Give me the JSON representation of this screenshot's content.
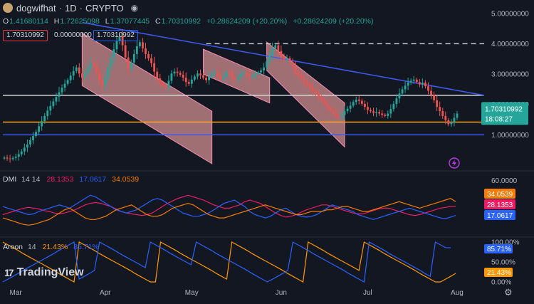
{
  "header": {
    "symbol": "dogwifhat",
    "interval": "1D",
    "exchange": "CRYPTO",
    "ohlc": {
      "o_label": "O",
      "o": "1.41680114",
      "h_label": "H",
      "h": "1.72625098",
      "l_label": "L",
      "l": "1.37077445",
      "c_label": "C",
      "c": "1.70310992",
      "change": "+0.28624209 (+20.20%)",
      "change2": "+0.28624209 (+20.20%)"
    },
    "tag_red": "1.70310992",
    "tag_zero": "0.00000000",
    "tag_blue": "1.70310992"
  },
  "indicators": {
    "dmi": {
      "name": "DMI",
      "params": "14 14",
      "adx": "28.1353",
      "minus_di": "17.0617",
      "plus_di": "34.0539"
    },
    "aroon": {
      "name": "Aroon",
      "params": "14",
      "down": "21.43%",
      "up": "85.71%"
    }
  },
  "price_badge": {
    "price": "1.70310992",
    "countdown": "18:08:27"
  },
  "branding": {
    "logo_text": "TradingView",
    "logo_mark": "17"
  },
  "colors": {
    "background": "#131722",
    "up": "#26a69a",
    "down": "#ef5350",
    "channel_fill": "#f7a7a7",
    "blue_line": "#3d5af1",
    "orange_line": "#f5a623",
    "white_line": "#d8d8d8",
    "dmi_orange": "#f57c00",
    "dmi_red": "#e91e63",
    "dmi_blue": "#2962ff",
    "aroon_orange": "#ff9800",
    "aroon_blue": "#2962ff"
  },
  "chart_data": [
    {
      "type": "candlestick",
      "title": "dogwifhat · 1D · CRYPTO",
      "ylim": [
        0,
        5.3
      ],
      "y_ticks": [
        "5.00000000",
        "4.00000000",
        "3.00000000",
        "2.00000000",
        "1.00000000"
      ],
      "x_ticks": [
        "Mar",
        "Apr",
        "May",
        "Jun",
        "Jul",
        "Aug"
      ],
      "close_path": [
        0.25,
        0.22,
        0.2,
        0.24,
        0.28,
        0.36,
        0.45,
        0.58,
        0.68,
        0.82,
        0.96,
        1.1,
        1.28,
        1.45,
        1.62,
        1.8,
        1.95,
        2.1,
        2.25,
        2.4,
        2.55,
        2.68,
        2.8,
        2.95,
        3.1,
        3.22,
        3.02,
        2.88,
        3.06,
        3.22,
        3.36,
        3.28,
        3.06,
        2.78,
        2.6,
        2.86,
        3.22,
        3.52,
        3.82,
        4.1,
        4.25,
        3.95,
        3.55,
        3.15,
        3.38,
        3.66,
        3.92,
        4.05,
        3.85,
        3.66,
        3.52,
        3.36,
        3.08,
        2.86,
        2.72,
        2.62,
        2.56,
        2.78,
        3.02,
        3.08,
        3.04,
        2.98,
        2.88,
        2.74,
        2.68,
        2.82,
        2.92,
        3.02,
        2.96,
        2.88,
        2.8,
        2.92,
        3.02,
        3.06,
        2.96,
        2.84,
        2.92,
        3.06,
        3.02,
        2.9,
        2.82,
        2.9,
        3.0,
        3.06,
        2.98,
        2.9,
        2.95,
        3.0,
        3.06,
        3.12,
        3.22,
        3.42,
        3.62,
        3.85,
        3.95,
        3.76,
        3.58,
        3.48,
        3.52,
        3.4,
        3.26,
        3.06,
        2.95,
        2.85,
        2.74,
        2.64,
        2.55,
        2.45,
        2.36,
        2.25,
        2.14,
        2.02,
        1.9,
        1.8,
        1.7,
        1.62,
        1.58,
        1.65,
        1.78,
        1.86,
        1.96,
        2.08,
        2.16,
        2.12,
        2.02,
        1.92,
        1.82,
        1.78,
        1.72,
        1.75,
        1.7,
        1.66,
        1.62,
        1.7,
        1.85,
        2.02,
        2.2,
        2.36,
        2.5,
        2.62,
        2.72,
        2.78,
        2.82,
        2.74,
        2.66,
        2.72,
        2.6,
        2.45,
        2.32,
        2.14,
        1.92,
        1.78,
        1.62,
        1.48,
        1.35,
        1.42,
        1.56,
        1.7
      ],
      "levels": {
        "blue_support": 1.0,
        "orange_level": 1.42,
        "white_level": 2.3,
        "dashed_resistance": 4.0
      },
      "descending_trendline": [
        {
          "date_index": 27,
          "price": 4.7
        },
        {
          "date_index": 160,
          "price": 2.3
        }
      ],
      "channels": [
        {
          "start_index": 27,
          "end_index": 72,
          "upper": [
            4.35,
            1.78
          ],
          "lower": [
            2.62,
            0.05
          ]
        },
        {
          "start_index": 69,
          "end_index": 92,
          "upper": [
            3.82,
            2.88
          ],
          "lower": [
            3.0,
            2.05
          ]
        },
        {
          "start_index": 91,
          "end_index": 118,
          "upper": [
            4.05,
            2.05
          ],
          "lower": [
            3.12,
            0.6
          ]
        }
      ],
      "current_price": 1.70310992
    },
    {
      "type": "line",
      "title": "DMI 14 14",
      "ylim": [
        0,
        65
      ],
      "y_ticks": [
        "60.0000"
      ],
      "series": [
        {
          "name": "ADX",
          "color": "#e91e63",
          "values": [
            18,
            20,
            22,
            24,
            26,
            27,
            26,
            25,
            23,
            22,
            20,
            19,
            20,
            22,
            24,
            27,
            30,
            32,
            33,
            32,
            30,
            28,
            25,
            22,
            20,
            19,
            18,
            17,
            18,
            20,
            24,
            28,
            32,
            35,
            38,
            40,
            42,
            40,
            38,
            36,
            33,
            30,
            28,
            26,
            26,
            28,
            30,
            34,
            36,
            34,
            32,
            28,
            24,
            20,
            17,
            15,
            16,
            18,
            21,
            24,
            26,
            28,
            30,
            30,
            28,
            26,
            24,
            22,
            20,
            19,
            19,
            21,
            23,
            25,
            26,
            26,
            24,
            22,
            20,
            18,
            17,
            18,
            20,
            22,
            24,
            26,
            27,
            28,
            28.1353
          ]
        },
        {
          "name": "-DI",
          "color": "#2962ff",
          "values": [
            28,
            26,
            24,
            22,
            20,
            18,
            19,
            22,
            24,
            26,
            28,
            30,
            28,
            26,
            30,
            34,
            38,
            42,
            40,
            36,
            32,
            28,
            24,
            22,
            20,
            22,
            24,
            28,
            32,
            36,
            38,
            36,
            32,
            28,
            24,
            20,
            18,
            16,
            16,
            18,
            20,
            24,
            28,
            32,
            34,
            36,
            32,
            28,
            22,
            18,
            16,
            14,
            16,
            20,
            24,
            26,
            22,
            18,
            16,
            15,
            16,
            18,
            22,
            26,
            30,
            28,
            26,
            24,
            22,
            18,
            16,
            14,
            12,
            14,
            16,
            18,
            20,
            22,
            24,
            26,
            24,
            22,
            20,
            18,
            16,
            14,
            13,
            15,
            17.0617
          ]
        },
        {
          "name": "+DI",
          "color": "#f57c00",
          "values": [
            14,
            12,
            10,
            8,
            6,
            5,
            6,
            8,
            10,
            12,
            16,
            20,
            24,
            26,
            22,
            18,
            14,
            12,
            12,
            14,
            16,
            20,
            24,
            26,
            28,
            30,
            26,
            22,
            18,
            16,
            16,
            18,
            22,
            26,
            28,
            30,
            32,
            30,
            26,
            22,
            18,
            16,
            14,
            14,
            16,
            18,
            20,
            22,
            24,
            26,
            28,
            30,
            28,
            26,
            24,
            22,
            20,
            18,
            18,
            20,
            22,
            22,
            22,
            24,
            24,
            26,
            28,
            28,
            26,
            24,
            22,
            22,
            24,
            26,
            28,
            30,
            32,
            34,
            32,
            30,
            28,
            26,
            28,
            30,
            32,
            34,
            36,
            38,
            34.0539
          ]
        }
      ]
    },
    {
      "type": "line",
      "title": "Aroon 14",
      "ylim": [
        0,
        100
      ],
      "y_ticks": [
        "100.00%",
        "50.00%",
        "0.00%"
      ],
      "series": [
        {
          "name": "Aroon Down",
          "color": "#ff9800",
          "values": [
            100,
            93,
            86,
            79,
            71,
            64,
            57,
            50,
            43,
            36,
            29,
            21,
            14,
            7,
            0,
            100,
            93,
            86,
            79,
            71,
            64,
            57,
            50,
            43,
            36,
            29,
            21,
            14,
            7,
            0,
            0,
            100,
            93,
            86,
            79,
            71,
            64,
            57,
            50,
            43,
            36,
            29,
            21,
            14,
            7,
            100,
            93,
            86,
            79,
            71,
            64,
            57,
            50,
            43,
            36,
            29,
            21,
            14,
            7,
            0,
            100,
            93,
            86,
            79,
            71,
            64,
            57,
            50,
            43,
            36,
            29,
            100,
            93,
            86,
            79,
            71,
            64,
            57,
            50,
            43,
            36,
            29,
            21,
            14,
            7,
            0,
            0,
            7,
            14,
            21.43
          ]
        },
        {
          "name": "Aroon Up",
          "color": "#2962ff",
          "values": [
            0,
            7,
            14,
            21,
            29,
            36,
            43,
            50,
            57,
            64,
            71,
            79,
            86,
            93,
            100,
            7,
            14,
            21,
            29,
            100,
            93,
            86,
            79,
            71,
            64,
            57,
            50,
            43,
            36,
            100,
            93,
            86,
            79,
            71,
            64,
            57,
            50,
            43,
            100,
            93,
            86,
            79,
            71,
            64,
            57,
            50,
            43,
            36,
            29,
            21,
            14,
            7,
            0,
            7,
            14,
            21,
            29,
            100,
            93,
            86,
            79,
            71,
            64,
            57,
            50,
            43,
            36,
            29,
            21,
            14,
            7,
            0,
            100,
            93,
            86,
            79,
            71,
            64,
            57,
            50,
            43,
            36,
            29,
            21,
            14,
            100,
            93,
            86,
            85.71
          ]
        }
      ]
    }
  ]
}
